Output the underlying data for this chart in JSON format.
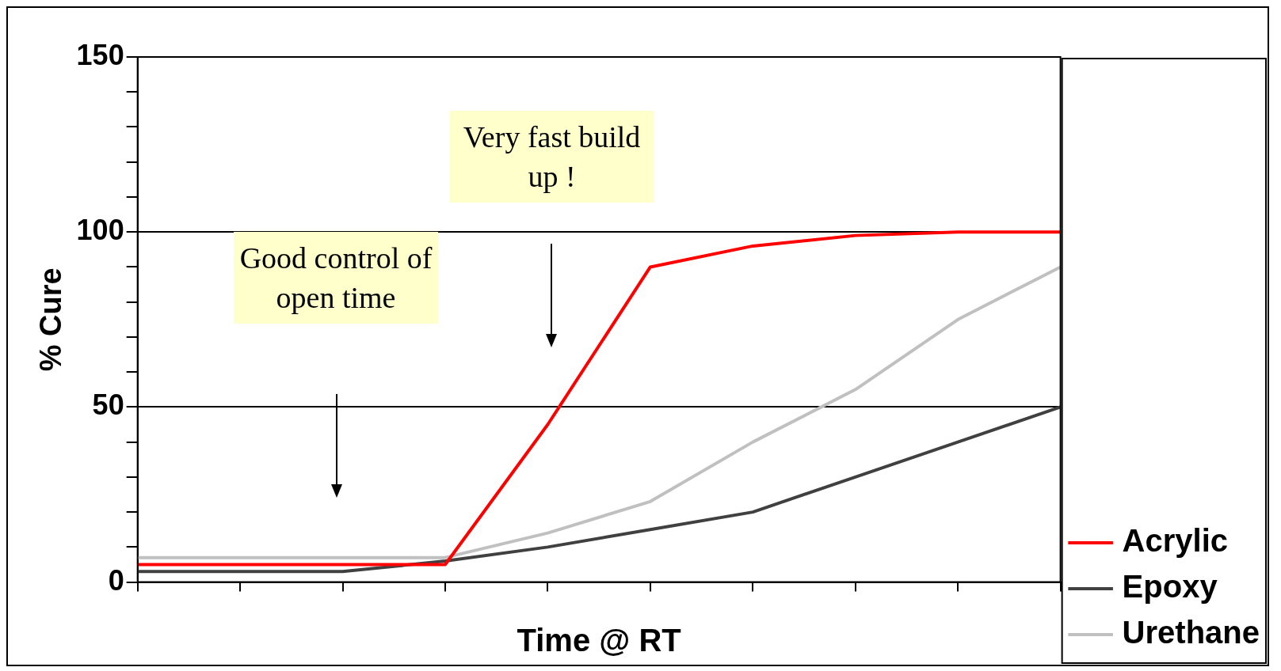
{
  "chart_data": {
    "type": "line",
    "xlabel": "Time @ RT",
    "ylabel": "% Cure",
    "categories": [
      null,
      null,
      null,
      null,
      null,
      null,
      null,
      null,
      null,
      null
    ],
    "series": [
      {
        "name": "Acrylic",
        "color": "#ff0000",
        "values": [
          5,
          5,
          5,
          5,
          45,
          90,
          96,
          99,
          100,
          100
        ]
      },
      {
        "name": "Epoxy",
        "color": "#404040",
        "values": [
          3,
          3,
          3,
          6,
          10,
          15,
          20,
          30,
          40,
          50
        ]
      },
      {
        "name": "Urethane",
        "color": "#c0c0c0",
        "values": [
          7,
          7,
          7,
          7,
          14,
          23,
          40,
          55,
          75,
          90
        ]
      }
    ],
    "ylim": [
      0,
      150
    ],
    "yticks": [
      0,
      {
        "value": 10,
        "label": null
      },
      {
        "value": 20,
        "label": null
      },
      {
        "value": 30,
        "label": null
      },
      {
        "value": 40,
        "label": null
      },
      50,
      {
        "value": 60,
        "label": null
      },
      {
        "value": 70,
        "label": null
      },
      {
        "value": 80,
        "label": null
      },
      {
        "value": 90,
        "label": null
      },
      100,
      {
        "value": 110,
        "label": null
      },
      {
        "value": 120,
        "label": null
      },
      {
        "value": 130,
        "label": null
      },
      {
        "value": 140,
        "label": null
      },
      150
    ],
    "grid": "y",
    "legend": "bottom right",
    "marker": "none",
    "line_style": "solid",
    "annotations": [
      "Good control of open time",
      "Very fast build up !"
    ]
  }
}
